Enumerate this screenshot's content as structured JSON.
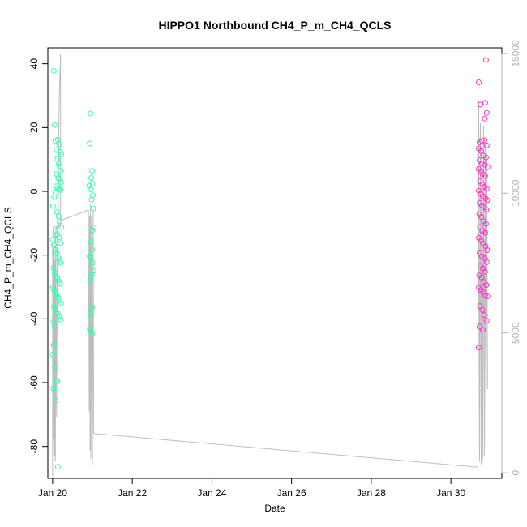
{
  "chart_data": {
    "type": "scatter",
    "title": "HIPPO1 Northbound CH4_P_m_CH4_QCLS",
    "xlabel": "Date",
    "ylabel": "CH4_P_m_CH4_QCLS",
    "x_tick_labels": [
      "Jan 20",
      "Jan 22",
      "Jan 24",
      "Jan 26",
      "Jan 28",
      "Jan 30"
    ],
    "x_tick_values": [
      20,
      22,
      24,
      26,
      28,
      30
    ],
    "xlim": [
      19.88,
      31.28
    ],
    "ylim": [
      -90,
      45
    ],
    "y_ticks": [
      -80,
      -60,
      -40,
      -20,
      0,
      20,
      40
    ],
    "y_tick_labels": [
      "-80",
      "-60",
      "-40",
      "-20",
      "0",
      "20",
      "40"
    ],
    "y2lim": [
      -200,
      15200
    ],
    "y2_ticks": [
      0,
      5000,
      10000,
      15000
    ],
    "y2_tick_labels": [
      "0",
      "5000",
      "10000",
      "15000"
    ],
    "colors": {
      "series_early": "#33ffaa",
      "series_late": "#ff33cc",
      "altitude_line": "#bdbdbd",
      "right_axis": "#b4b4b4"
    },
    "series": [
      {
        "points": [
          [
            20.03,
            37.8
          ],
          [
            20.05,
            20.8
          ],
          [
            20.07,
            15.8
          ],
          [
            20.1,
            13.0
          ],
          [
            20.12,
            10.2
          ],
          [
            20.15,
            8.6
          ],
          [
            20.18,
            7.8
          ],
          [
            20.2,
            6.4
          ],
          [
            20.13,
            16.2
          ],
          [
            20.16,
            14.8
          ],
          [
            20.19,
            12.4
          ],
          [
            20.22,
            11.6
          ],
          [
            20.1,
            5.4
          ],
          [
            20.14,
            4.2
          ],
          [
            20.17,
            3.8
          ],
          [
            20.21,
            2.9
          ],
          [
            20.09,
            1.6
          ],
          [
            20.12,
            1.1
          ],
          [
            20.16,
            0.8
          ],
          [
            20.2,
            0.4
          ],
          [
            20.01,
            -4.6
          ],
          [
            20.04,
            -1.8
          ],
          [
            20.07,
            -0.4
          ],
          [
            20.11,
            -6.4
          ],
          [
            20.15,
            -7.9
          ],
          [
            20.18,
            -9.4
          ],
          [
            20.22,
            -11.2
          ],
          [
            20.08,
            -12.4
          ],
          [
            20.12,
            -13.4
          ],
          [
            20.16,
            -14.4
          ],
          [
            20.2,
            -16.2
          ],
          [
            20.0,
            -15.2
          ],
          [
            20.03,
            -16.8
          ],
          [
            20.06,
            -18.4
          ],
          [
            20.1,
            -19.2
          ],
          [
            20.14,
            -20.8
          ],
          [
            20.17,
            -21.6
          ],
          [
            20.2,
            -22.4
          ],
          [
            20.02,
            -24.0
          ],
          [
            20.05,
            -25.6
          ],
          [
            20.08,
            -26.8
          ],
          [
            20.12,
            -27.4
          ],
          [
            20.15,
            -28.2
          ],
          [
            20.19,
            -29.0
          ],
          [
            20.01,
            -30.2
          ],
          [
            20.04,
            -31.0
          ],
          [
            20.07,
            -31.8
          ],
          [
            20.1,
            -32.6
          ],
          [
            20.14,
            -33.4
          ],
          [
            20.18,
            -34.2
          ],
          [
            20.21,
            -35.0
          ],
          [
            20.03,
            -36.2
          ],
          [
            20.06,
            -37.0
          ],
          [
            20.09,
            -37.8
          ],
          [
            20.13,
            -38.4
          ],
          [
            20.16,
            -39.2
          ],
          [
            20.2,
            -40.2
          ],
          [
            20.02,
            -41.0
          ],
          [
            20.05,
            -42.2
          ],
          [
            20.08,
            -43.4
          ],
          [
            20.03,
            -48.2
          ],
          [
            20.0,
            -51.2
          ],
          [
            20.06,
            -55.2
          ],
          [
            20.1,
            -59.4
          ],
          [
            20.12,
            -59.6
          ],
          [
            20.02,
            -61.8
          ],
          [
            20.08,
            -65.6
          ],
          [
            20.13,
            -86.4
          ],
          [
            20.95,
            24.4
          ],
          [
            20.93,
            15.0
          ],
          [
            20.99,
            6.4
          ],
          [
            20.97,
            4.2
          ],
          [
            21.0,
            2.4
          ],
          [
            20.92,
            1.8
          ],
          [
            20.96,
            0.6
          ],
          [
            21.01,
            -1.2
          ],
          [
            20.98,
            -2.6
          ],
          [
            21.02,
            -5.4
          ],
          [
            21.03,
            -11.4
          ],
          [
            21.0,
            -12.2
          ],
          [
            20.94,
            -15.2
          ],
          [
            20.97,
            -16.0
          ],
          [
            20.99,
            -18.4
          ],
          [
            20.93,
            -20.4
          ],
          [
            20.96,
            -20.8
          ],
          [
            21.0,
            -22.4
          ],
          [
            21.02,
            -25.0
          ],
          [
            20.98,
            -26.2
          ],
          [
            20.95,
            -28.0
          ],
          [
            20.99,
            -36.4
          ],
          [
            20.97,
            -37.2
          ],
          [
            20.95,
            -38.8
          ],
          [
            20.93,
            -43.0
          ],
          [
            20.96,
            -43.8
          ],
          [
            21.0,
            -44.6
          ]
        ]
      },
      {
        "points": [
          [
            30.88,
            41.2
          ],
          [
            30.7,
            34.2
          ],
          [
            30.74,
            27.2
          ],
          [
            30.86,
            27.8
          ],
          [
            30.9,
            24.6
          ],
          [
            30.85,
            22.8
          ],
          [
            30.72,
            15.4
          ],
          [
            30.78,
            15.8
          ],
          [
            30.84,
            16.0
          ],
          [
            30.9,
            14.4
          ],
          [
            30.7,
            13.4
          ],
          [
            30.76,
            12.6
          ],
          [
            30.82,
            11.2
          ],
          [
            30.88,
            10.6
          ],
          [
            30.72,
            9.8
          ],
          [
            30.78,
            8.8
          ],
          [
            30.85,
            8.4
          ],
          [
            30.92,
            7.6
          ],
          [
            30.7,
            7.0
          ],
          [
            30.76,
            6.2
          ],
          [
            30.8,
            5.4
          ],
          [
            30.86,
            4.8
          ],
          [
            30.73,
            3.2
          ],
          [
            30.79,
            2.2
          ],
          [
            30.84,
            1.4
          ],
          [
            30.9,
            0.8
          ],
          [
            30.7,
            0.2
          ],
          [
            30.75,
            -0.8
          ],
          [
            30.81,
            -1.6
          ],
          [
            30.87,
            -2.2
          ],
          [
            30.91,
            -2.8
          ],
          [
            30.72,
            -3.6
          ],
          [
            30.78,
            -4.4
          ],
          [
            30.83,
            -5.0
          ],
          [
            30.89,
            -5.8
          ],
          [
            30.71,
            -7.2
          ],
          [
            30.77,
            -8.0
          ],
          [
            30.82,
            -9.4
          ],
          [
            30.88,
            -10.2
          ],
          [
            30.73,
            -11.2
          ],
          [
            30.79,
            -12.4
          ],
          [
            30.86,
            -13.0
          ],
          [
            30.7,
            -14.6
          ],
          [
            30.76,
            -15.4
          ],
          [
            30.81,
            -16.4
          ],
          [
            30.87,
            -17.2
          ],
          [
            30.91,
            -18.4
          ],
          [
            30.72,
            -19.2
          ],
          [
            30.78,
            -20.4
          ],
          [
            30.84,
            -21.0
          ],
          [
            30.9,
            -22.2
          ],
          [
            30.74,
            -23.4
          ],
          [
            30.8,
            -24.2
          ],
          [
            30.85,
            -25.2
          ],
          [
            30.71,
            -26.4
          ],
          [
            30.77,
            -27.0
          ],
          [
            30.83,
            -28.4
          ],
          [
            30.89,
            -29.4
          ],
          [
            30.7,
            -30.2
          ],
          [
            30.75,
            -31.0
          ],
          [
            30.81,
            -31.6
          ],
          [
            30.86,
            -32.6
          ],
          [
            30.92,
            -33.0
          ],
          [
            30.73,
            -36.0
          ],
          [
            30.79,
            -37.2
          ],
          [
            30.84,
            -38.8
          ],
          [
            30.9,
            -40.6
          ],
          [
            30.72,
            -42.4
          ],
          [
            30.8,
            -43.4
          ],
          [
            30.7,
            -49.0
          ]
        ]
      }
    ],
    "altitude_line": {
      "points": [
        [
          20.0,
          -150
        ],
        [
          20.0,
          8200
        ],
        [
          20.01,
          1200
        ],
        [
          20.02,
          8000
        ],
        [
          20.03,
          800
        ],
        [
          20.04,
          8300
        ],
        [
          20.05,
          600
        ],
        [
          20.06,
          7600
        ],
        [
          20.07,
          400
        ],
        [
          20.08,
          8500
        ],
        [
          20.1,
          2000
        ],
        [
          20.12,
          8800
        ],
        [
          20.14,
          9500
        ],
        [
          20.16,
          13000
        ],
        [
          20.18,
          14000
        ],
        [
          20.2,
          15000
        ],
        [
          20.2,
          8800
        ],
        [
          20.1,
          8800
        ],
        [
          20.05,
          8400
        ],
        [
          20.0,
          8400
        ],
        [
          20.02,
          8800
        ],
        [
          20.14,
          8800
        ],
        [
          20.16,
          9000
        ],
        [
          20.9,
          9400
        ],
        [
          20.92,
          2200
        ],
        [
          20.93,
          9200
        ],
        [
          20.94,
          800
        ],
        [
          20.95,
          9600
        ],
        [
          20.96,
          500
        ],
        [
          20.98,
          9200
        ],
        [
          21.0,
          300
        ],
        [
          21.02,
          9400
        ],
        [
          21.03,
          1400
        ],
        [
          30.68,
          200
        ],
        [
          30.7,
          13300
        ],
        [
          30.72,
          400
        ],
        [
          30.74,
          12500
        ],
        [
          30.76,
          300
        ],
        [
          30.78,
          12600
        ],
        [
          30.8,
          500
        ],
        [
          30.82,
          12400
        ],
        [
          30.84,
          600
        ],
        [
          30.86,
          11800
        ],
        [
          30.88,
          900
        ],
        [
          30.9,
          11400
        ],
        [
          30.92,
          3000
        ]
      ],
      "path_order_note": ""
    }
  }
}
